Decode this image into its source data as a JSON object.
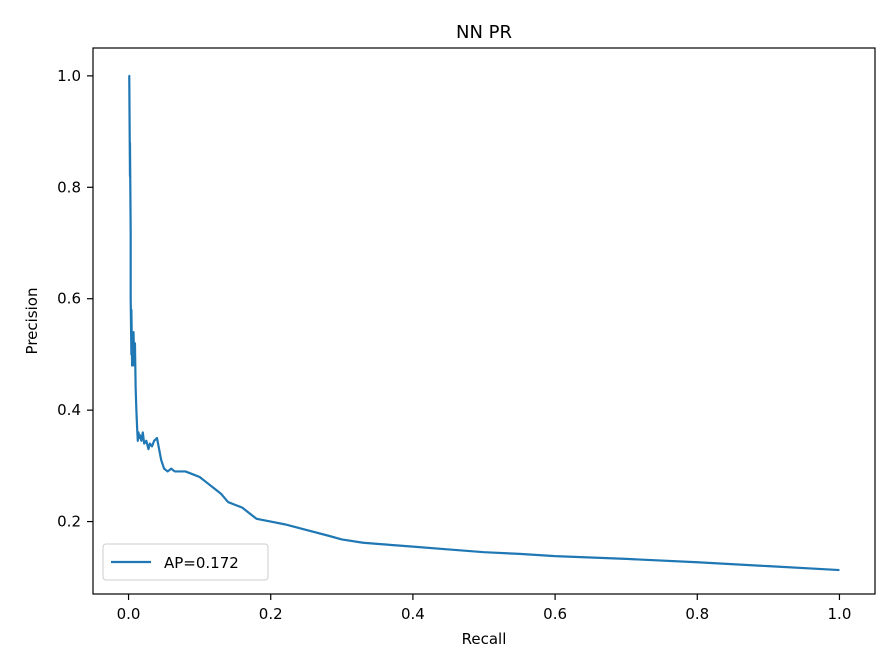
{
  "chart_data": {
    "type": "line",
    "title": "NN PR",
    "xlabel": "Recall",
    "ylabel": "Precision",
    "xlim": [
      -0.05,
      1.05
    ],
    "ylim": [
      0.07,
      1.05
    ],
    "x_ticks": [
      "0.0",
      "0.2",
      "0.4",
      "0.6",
      "0.8",
      "1.0"
    ],
    "y_ticks": [
      "0.2",
      "0.4",
      "0.6",
      "0.8",
      "1.0"
    ],
    "grid": false,
    "legend_position": "lower-left",
    "series": [
      {
        "name": "AP=0.172",
        "color": "#1f77b4",
        "x": [
          0.0,
          0.001,
          0.002,
          0.002,
          0.003,
          0.003,
          0.004,
          0.004,
          0.005,
          0.005,
          0.006,
          0.007,
          0.008,
          0.009,
          0.01,
          0.011,
          0.012,
          0.013,
          0.014,
          0.015,
          0.016,
          0.018,
          0.02,
          0.022,
          0.025,
          0.028,
          0.03,
          0.033,
          0.036,
          0.04,
          0.043,
          0.046,
          0.05,
          0.055,
          0.06,
          0.065,
          0.07,
          0.08,
          0.09,
          0.1,
          0.11,
          0.12,
          0.13,
          0.14,
          0.15,
          0.16,
          0.17,
          0.18,
          0.2,
          0.22,
          0.25,
          0.28,
          0.3,
          0.33,
          0.37,
          0.4,
          0.45,
          0.5,
          0.55,
          0.6,
          0.7,
          0.8,
          0.9,
          1.0
        ],
        "y": [
          1.0,
          1.0,
          0.82,
          0.88,
          0.72,
          0.6,
          0.5,
          0.58,
          0.48,
          0.53,
          0.5,
          0.54,
          0.48,
          0.52,
          0.44,
          0.4,
          0.37,
          0.345,
          0.36,
          0.35,
          0.355,
          0.345,
          0.36,
          0.34,
          0.345,
          0.33,
          0.34,
          0.335,
          0.345,
          0.35,
          0.33,
          0.31,
          0.295,
          0.29,
          0.295,
          0.29,
          0.29,
          0.29,
          0.285,
          0.28,
          0.27,
          0.26,
          0.25,
          0.235,
          0.23,
          0.225,
          0.215,
          0.205,
          0.2,
          0.195,
          0.185,
          0.175,
          0.168,
          0.162,
          0.158,
          0.155,
          0.15,
          0.145,
          0.142,
          0.138,
          0.133,
          0.127,
          0.12,
          0.113
        ]
      }
    ]
  }
}
